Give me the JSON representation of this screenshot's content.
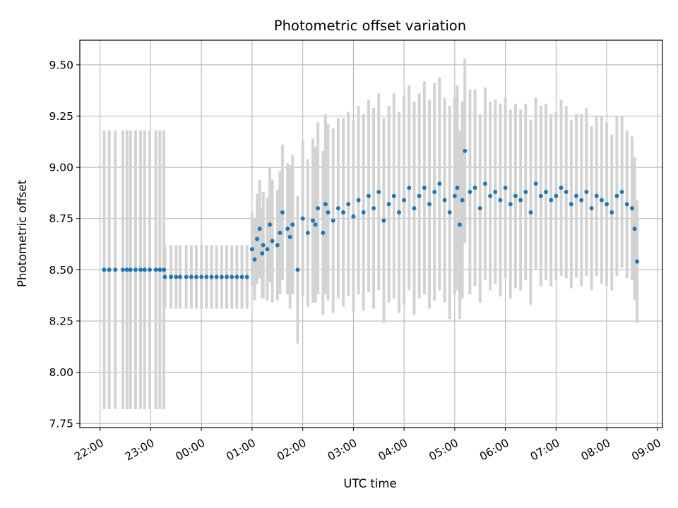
{
  "chart_data": {
    "type": "scatter",
    "title": "Photometric offset variation",
    "xlabel": "UTC time",
    "ylabel": "Photometric offset",
    "x_unit": "hours",
    "xlim": [
      -2.4,
      9.1
    ],
    "ylim": [
      7.73,
      9.62
    ],
    "x_ticks": [
      {
        "value": -2,
        "label": "22:00"
      },
      {
        "value": -1,
        "label": "23:00"
      },
      {
        "value": 0,
        "label": "00:00"
      },
      {
        "value": 1,
        "label": "01:00"
      },
      {
        "value": 2,
        "label": "02:00"
      },
      {
        "value": 3,
        "label": "03:00"
      },
      {
        "value": 4,
        "label": "04:00"
      },
      {
        "value": 5,
        "label": "05:00"
      },
      {
        "value": 6,
        "label": "06:00"
      },
      {
        "value": 7,
        "label": "07:00"
      },
      {
        "value": 8,
        "label": "08:00"
      },
      {
        "value": 9,
        "label": "09:00"
      }
    ],
    "y_ticks": [
      {
        "value": 7.75,
        "label": "7.75"
      },
      {
        "value": 8.0,
        "label": "8.00"
      },
      {
        "value": 8.25,
        "label": "8.25"
      },
      {
        "value": 8.5,
        "label": "8.50"
      },
      {
        "value": 8.75,
        "label": "8.75"
      },
      {
        "value": 9.0,
        "label": "9.00"
      },
      {
        "value": 9.25,
        "label": "9.25"
      },
      {
        "value": 9.5,
        "label": "9.50"
      }
    ],
    "grid": true,
    "point_color": "#1f77b4",
    "errorbar_color": "#d3d3d3",
    "series": [
      {
        "x": [
          -1.92,
          -1.82,
          -1.7,
          -1.55,
          -1.47,
          -1.4,
          -1.3,
          -1.2,
          -1.12,
          -1.02,
          -0.9,
          -0.82,
          -0.74,
          -0.72,
          -0.6,
          -0.5,
          -0.42,
          -0.3,
          -0.2,
          -0.1,
          0.0,
          0.1,
          0.2,
          0.3,
          0.4,
          0.5,
          0.6,
          0.7,
          0.8,
          0.9,
          1.0,
          1.05,
          1.1,
          1.15,
          1.2,
          1.22,
          1.3,
          1.35,
          1.4,
          1.5,
          1.55,
          1.6,
          1.7,
          1.75,
          1.8,
          1.9,
          2.0,
          2.1,
          2.2,
          2.25,
          2.3,
          2.4,
          2.45,
          2.5,
          2.6,
          2.7,
          2.8,
          2.9,
          3.0,
          3.1,
          3.2,
          3.3,
          3.4,
          3.5,
          3.6,
          3.7,
          3.8,
          3.9,
          4.0,
          4.1,
          4.2,
          4.3,
          4.4,
          4.5,
          4.6,
          4.7,
          4.8,
          4.9,
          5.0,
          5.05,
          5.1,
          5.15,
          5.2,
          5.3,
          5.4,
          5.5,
          5.6,
          5.7,
          5.8,
          5.9,
          6.0,
          6.1,
          6.2,
          6.3,
          6.4,
          6.5,
          6.6,
          6.7,
          6.8,
          6.9,
          7.0,
          7.1,
          7.2,
          7.3,
          7.4,
          7.5,
          7.6,
          7.7,
          7.8,
          7.9,
          8.0,
          8.1,
          8.2,
          8.3,
          8.4,
          8.5,
          8.55,
          8.6
        ],
        "y": [
          8.5,
          8.5,
          8.5,
          8.5,
          8.5,
          8.5,
          8.5,
          8.5,
          8.5,
          8.5,
          8.5,
          8.5,
          8.5,
          8.465,
          8.465,
          8.465,
          8.465,
          8.465,
          8.465,
          8.465,
          8.465,
          8.465,
          8.465,
          8.465,
          8.465,
          8.465,
          8.465,
          8.465,
          8.465,
          8.465,
          8.6,
          8.55,
          8.65,
          8.7,
          8.58,
          8.62,
          8.6,
          8.72,
          8.64,
          8.62,
          8.68,
          8.78,
          8.7,
          8.66,
          8.72,
          8.5,
          8.75,
          8.68,
          8.74,
          8.72,
          8.8,
          8.68,
          8.82,
          8.78,
          8.74,
          8.8,
          8.78,
          8.82,
          8.76,
          8.84,
          8.78,
          8.86,
          8.8,
          8.88,
          8.74,
          8.82,
          8.86,
          8.78,
          8.84,
          8.9,
          8.8,
          8.86,
          8.9,
          8.82,
          8.88,
          8.92,
          8.84,
          8.78,
          8.86,
          8.9,
          8.72,
          8.84,
          9.08,
          8.88,
          8.9,
          8.8,
          8.92,
          8.86,
          8.88,
          8.84,
          8.9,
          8.82,
          8.86,
          8.84,
          8.88,
          8.78,
          8.92,
          8.86,
          8.88,
          8.84,
          8.86,
          8.9,
          8.88,
          8.82,
          8.86,
          8.84,
          8.88,
          8.8,
          8.86,
          8.84,
          8.82,
          8.78,
          8.86,
          8.88,
          8.82,
          8.8,
          8.7,
          8.54
        ],
        "err": [
          0.68,
          0.68,
          0.68,
          0.68,
          0.68,
          0.68,
          0.68,
          0.68,
          0.68,
          0.68,
          0.68,
          0.68,
          0.68,
          0.155,
          0.155,
          0.155,
          0.155,
          0.155,
          0.155,
          0.155,
          0.155,
          0.155,
          0.155,
          0.155,
          0.155,
          0.155,
          0.155,
          0.155,
          0.155,
          0.155,
          0.18,
          0.2,
          0.22,
          0.24,
          0.22,
          0.26,
          0.25,
          0.28,
          0.3,
          0.27,
          0.3,
          0.33,
          0.32,
          0.35,
          0.34,
          0.36,
          0.38,
          0.36,
          0.4,
          0.38,
          0.42,
          0.4,
          0.44,
          0.43,
          0.45,
          0.44,
          0.46,
          0.45,
          0.47,
          0.46,
          0.48,
          0.47,
          0.49,
          0.48,
          0.5,
          0.48,
          0.5,
          0.49,
          0.51,
          0.5,
          0.52,
          0.5,
          0.52,
          0.51,
          0.53,
          0.52,
          0.5,
          0.52,
          0.48,
          0.5,
          0.46,
          0.48,
          0.45,
          0.5,
          0.48,
          0.46,
          0.47,
          0.46,
          0.45,
          0.47,
          0.44,
          0.46,
          0.45,
          0.44,
          0.43,
          0.45,
          0.42,
          0.44,
          0.43,
          0.42,
          0.41,
          0.43,
          0.42,
          0.41,
          0.4,
          0.42,
          0.41,
          0.4,
          0.39,
          0.41,
          0.4,
          0.38,
          0.39,
          0.37,
          0.36,
          0.35,
          0.35,
          0.3
        ]
      }
    ]
  }
}
